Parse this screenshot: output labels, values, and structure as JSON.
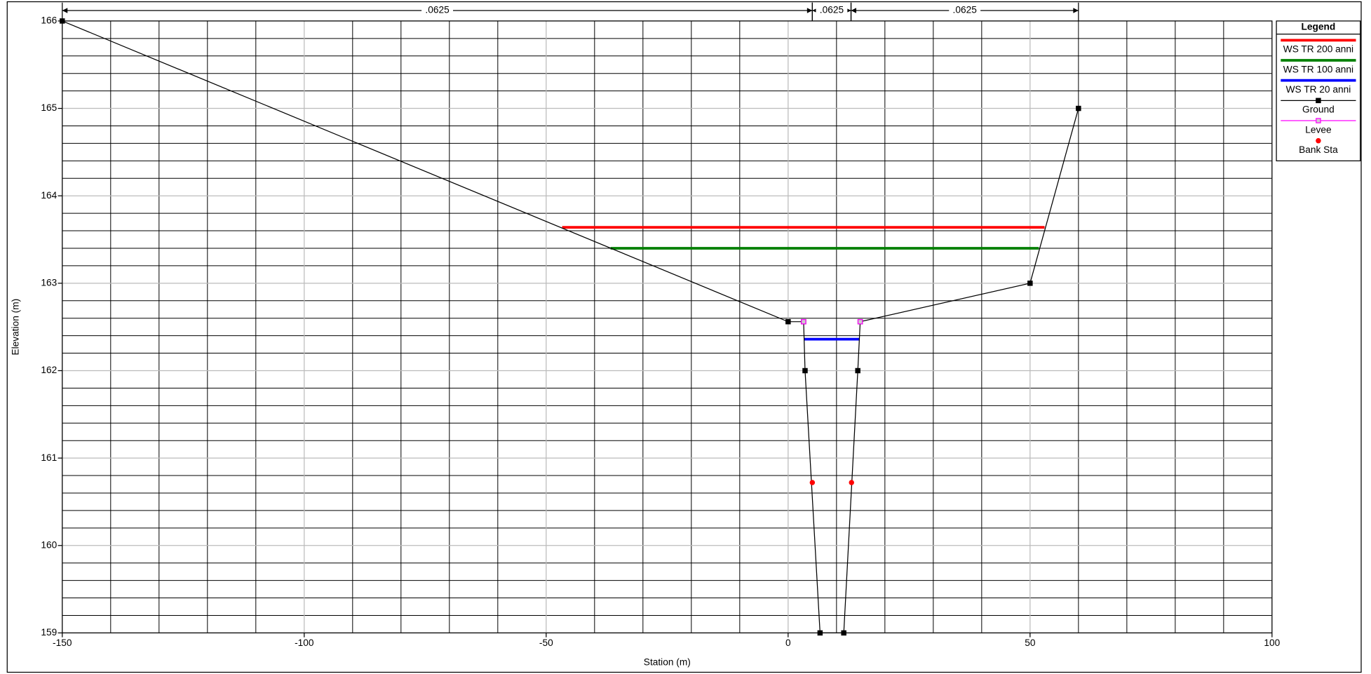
{
  "chart_data": {
    "type": "line",
    "xlabel": "Station (m)",
    "ylabel": "Elevation (m)",
    "xlim": [
      -150,
      100
    ],
    "ylim": [
      159,
      166
    ],
    "xticks": [
      -150,
      -100,
      -50,
      0,
      50,
      100
    ],
    "yticks": [
      159,
      160,
      161,
      162,
      163,
      164,
      165,
      166
    ],
    "xminor": [
      -140,
      -130,
      -120,
      -110,
      -90,
      -80,
      -70,
      -60,
      -40,
      -30,
      -20,
      -10,
      10,
      20,
      30,
      40,
      60,
      70,
      80,
      90
    ],
    "yminor": [
      159.2,
      159.4,
      159.6,
      159.8,
      160.2,
      160.4,
      160.6,
      160.8,
      161.2,
      161.4,
      161.6,
      161.8,
      162.2,
      162.4,
      162.6,
      162.8,
      163.2,
      163.4,
      163.6,
      163.8,
      164.2,
      164.4,
      164.6,
      164.8,
      165.2,
      165.4,
      165.6,
      165.8
    ],
    "grid": true,
    "legend_title": "Legend",
    "legend": "upper right",
    "n_values": [
      {
        "label": ".0625",
        "from": -150,
        "to": 5
      },
      {
        "label": ".0625",
        "from": 5,
        "to": 13
      },
      {
        "label": ".0625",
        "from": 13,
        "to": 60
      }
    ],
    "series": [
      {
        "name": "WS TR 200 anni",
        "color": "#ff0000",
        "width": 3,
        "x": [
          -46.7,
          53.0
        ],
        "values": [
          163.64,
          163.64
        ]
      },
      {
        "name": "WS TR 100 anni",
        "color": "#008000",
        "width": 3,
        "x": [
          -36.7,
          51.8
        ],
        "values": [
          163.4,
          163.4
        ]
      },
      {
        "name": "WS TR 20 anni",
        "color": "#0000ff",
        "width": 3,
        "x": [
          3.3,
          14.7
        ],
        "values": [
          162.36,
          162.36
        ]
      },
      {
        "name": "Ground",
        "color": "#000000",
        "width": 1,
        "marker": "square",
        "x": [
          -150,
          0,
          3.2,
          3.5,
          6.6,
          11.5,
          14.4,
          14.9,
          50,
          60
        ],
        "values": [
          166,
          162.56,
          162.56,
          162,
          159,
          159,
          162,
          162.56,
          163,
          165
        ]
      },
      {
        "name": "Levee",
        "color": "#ff00ff",
        "width": 1,
        "marker": "square",
        "noline": true,
        "x": [
          3.2,
          14.9
        ],
        "values": [
          162.56,
          162.56
        ]
      },
      {
        "name": "Bank Sta",
        "color": "#ff0000",
        "width": 1,
        "marker": "circle",
        "noline": true,
        "x": [
          5,
          13.1
        ],
        "values": [
          160.72,
          160.72
        ]
      }
    ]
  }
}
